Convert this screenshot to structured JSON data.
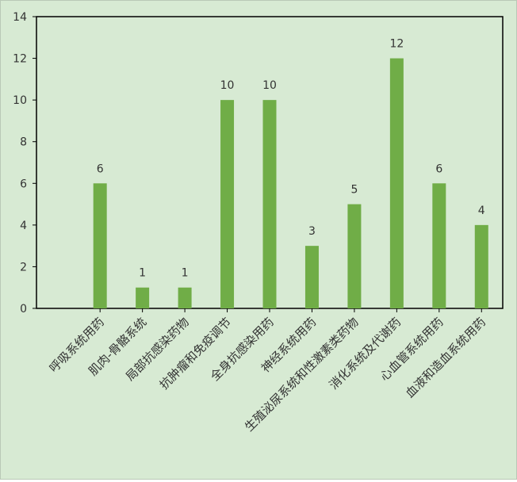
{
  "chart_data": {
    "type": "bar",
    "title": "",
    "xlabel": "",
    "ylabel": "",
    "categories": [
      "呼吸系统用药",
      "肌肉-骨骼系统",
      "局部抗感染药物",
      "抗肿瘤和免疫调节",
      "全身抗感染用药",
      "神经系统用药",
      "生殖泌尿系统和性激素类药物",
      "消化系统及代谢药",
      "心血管系统用药",
      "血液和造血系统用药"
    ],
    "values": [
      6,
      1,
      1,
      10,
      10,
      3,
      5,
      12,
      6,
      4
    ],
    "ylim": [
      0,
      14
    ],
    "yticks": [
      0,
      2,
      4,
      6,
      8,
      10,
      12,
      14
    ],
    "grid": false,
    "legend": "none",
    "colors": {
      "background": "#d7ead3",
      "bar": "#70ad47",
      "axis": "#000000",
      "text": "#333333"
    }
  }
}
